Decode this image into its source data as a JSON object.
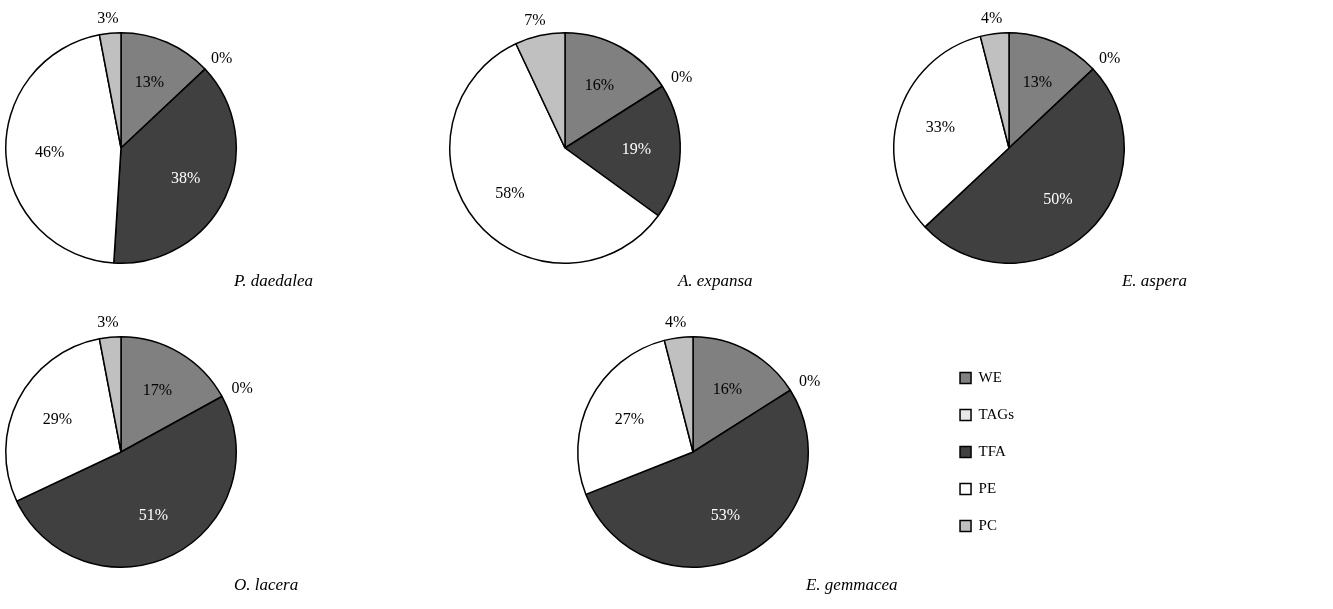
{
  "chart_data": [
    {
      "type": "pie",
      "title": "P. daedalea",
      "categories": [
        null,
        null,
        null,
        null,
        null
      ],
      "values": [
        13,
        0,
        38,
        46,
        3
      ],
      "value_labels": [
        "13%",
        "0%",
        "38%",
        "46%",
        "3%"
      ],
      "colors": [
        "#808080",
        "#e8e8e8",
        "#404040",
        "#ffffff",
        "#c0c0c0"
      ]
    },
    {
      "type": "pie",
      "title": "A. expansa",
      "categories": [
        null,
        null,
        null,
        null,
        null
      ],
      "values": [
        16,
        0,
        19,
        58,
        7
      ],
      "value_labels": [
        "16%",
        "0%",
        "19%",
        "58%",
        "7%"
      ],
      "colors": [
        "#808080",
        "#e8e8e8",
        "#404040",
        "#ffffff",
        "#c0c0c0"
      ]
    },
    {
      "type": "pie",
      "title": "E. aspera",
      "categories": [
        null,
        null,
        null,
        null,
        null
      ],
      "values": [
        13,
        0,
        50,
        33,
        4
      ],
      "value_labels": [
        "13%",
        "0%",
        "50%",
        "33%",
        "4%"
      ],
      "colors": [
        "#808080",
        "#e8e8e8",
        "#404040",
        "#ffffff",
        "#c0c0c0"
      ]
    },
    {
      "type": "pie",
      "title": "O. lacera",
      "categories": [
        null,
        null,
        null,
        null,
        null
      ],
      "values": [
        17,
        0,
        51,
        29,
        3
      ],
      "value_labels": [
        "17%",
        "0%",
        "51%",
        "29%",
        "3%"
      ],
      "colors": [
        "#808080",
        "#e8e8e8",
        "#404040",
        "#ffffff",
        "#c0c0c0"
      ]
    },
    {
      "type": "pie",
      "title": "E. gemmacea",
      "categories": [
        "WE",
        "TAGs",
        "TFA",
        "PE",
        "PC"
      ],
      "values": [
        16,
        0,
        53,
        27,
        4
      ],
      "value_labels": [
        "16%",
        "0%",
        "53%",
        "27%",
        "4%"
      ],
      "colors": [
        "#808080",
        "#e8e8e8",
        "#404040",
        "#ffffff",
        "#c0c0c0"
      ],
      "legend": "right"
    }
  ]
}
